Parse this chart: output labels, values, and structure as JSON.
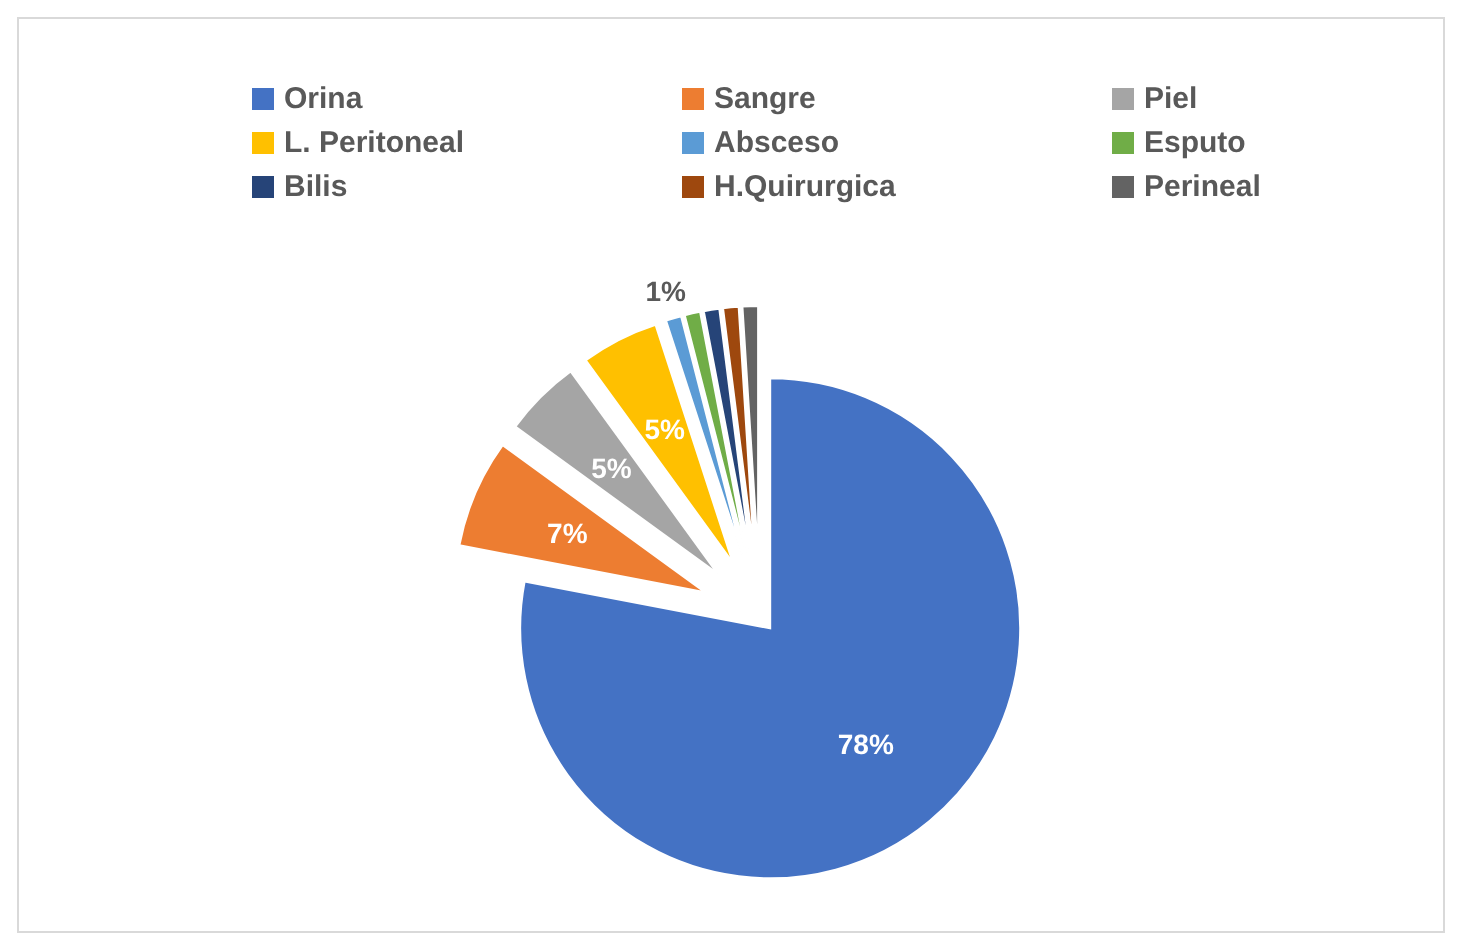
{
  "chart_data": {
    "type": "pie",
    "categories": [
      "Orina",
      "Sangre",
      "Piel",
      "L. Peritoneal",
      "Absceso",
      "Esputo",
      "Bilis",
      "H.Quirurgica",
      "Perineal"
    ],
    "values": [
      78,
      7,
      5,
      5,
      1,
      1,
      1,
      1,
      1
    ],
    "colors": [
      "#4472c4",
      "#ed7d31",
      "#a5a5a5",
      "#ffc000",
      "#5b9bd5",
      "#70ad47",
      "#264478",
      "#9e480e",
      "#636363"
    ],
    "value_labels": [
      "78%",
      "7%",
      "5%",
      "5%",
      "1%",
      null,
      null,
      null,
      null
    ],
    "legend": "top"
  }
}
